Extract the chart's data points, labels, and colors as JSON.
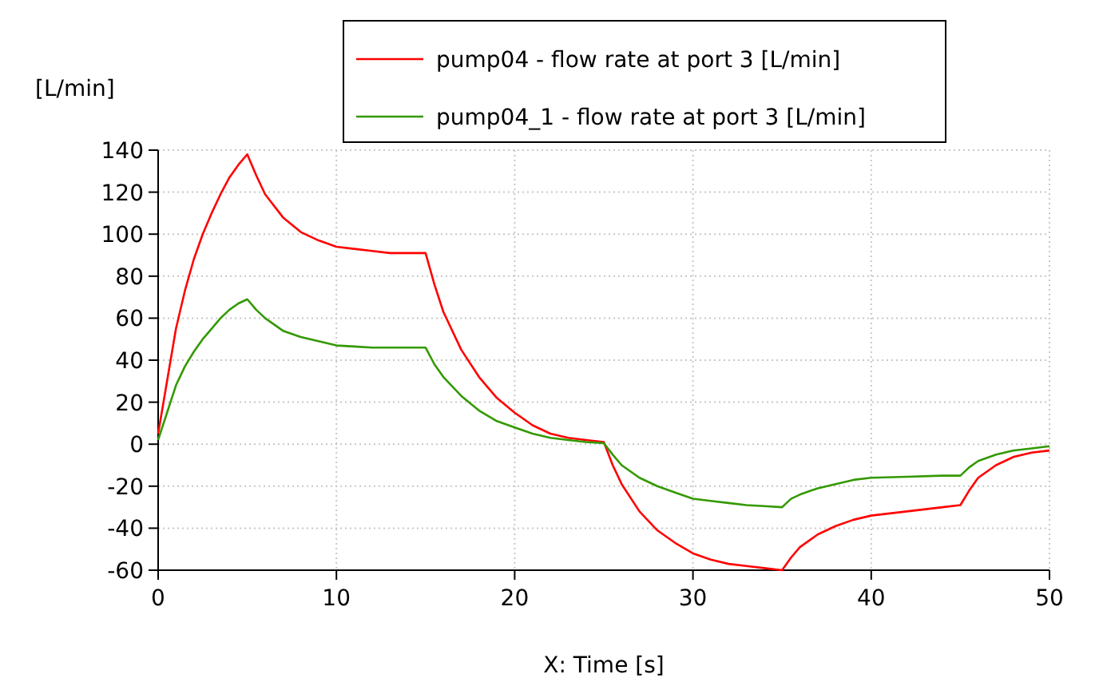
{
  "chart_data": {
    "type": "line",
    "ylabel": "[L/min]",
    "xlabel": "X: Time [s]",
    "xlim": [
      0,
      50
    ],
    "xticks": [
      0,
      10,
      20,
      30,
      40,
      50
    ],
    "ylim": [
      -60,
      140
    ],
    "yticks": [
      -60,
      -40,
      -20,
      0,
      20,
      40,
      60,
      80,
      100,
      120,
      140
    ],
    "grid": true,
    "legend": "top",
    "marker": "none",
    "line_style": "solid",
    "series": [
      {
        "name": "pump04 - flow rate at port 3 [L/min]",
        "color": "#ff0000",
        "x": [
          0,
          0.5,
          1,
          1.5,
          2,
          2.5,
          3,
          3.5,
          4,
          4.5,
          5,
          5.5,
          6,
          7,
          8,
          9,
          10,
          11,
          12,
          13,
          14,
          15,
          15.5,
          16,
          17,
          18,
          19,
          20,
          21,
          22,
          23,
          24,
          25,
          25.5,
          26,
          27,
          28,
          29,
          30,
          31,
          32,
          33,
          34,
          35,
          35.5,
          36,
          37,
          38,
          39,
          40,
          42,
          44,
          45,
          45.5,
          46,
          47,
          48,
          49,
          50
        ],
        "values": [
          5,
          30,
          55,
          73,
          88,
          100,
          110,
          119,
          127,
          133,
          138,
          128,
          119,
          108,
          101,
          97,
          94,
          93,
          92,
          91,
          91,
          91,
          76,
          63,
          45,
          32,
          22,
          15,
          9,
          5,
          3,
          2,
          1,
          -10,
          -19,
          -32,
          -41,
          -47,
          -52,
          -55,
          -57,
          -58,
          -59,
          -60,
          -54,
          -49,
          -43,
          -39,
          -36,
          -34,
          -32,
          -30,
          -29,
          -22,
          -16,
          -10,
          -6,
          -4,
          -3
        ]
      },
      {
        "name": "pump04_1 - flow rate at port 3 [L/min]",
        "color": "#339900",
        "x": [
          0,
          0.5,
          1,
          1.5,
          2,
          2.5,
          3,
          3.5,
          4,
          4.5,
          5,
          5.5,
          6,
          7,
          8,
          9,
          10,
          11,
          12,
          13,
          14,
          15,
          15.5,
          16,
          17,
          18,
          19,
          20,
          21,
          22,
          23,
          24,
          25,
          25.5,
          26,
          27,
          28,
          29,
          30,
          31,
          32,
          33,
          34,
          35,
          35.5,
          36,
          37,
          38,
          39,
          40,
          42,
          44,
          45,
          45.5,
          46,
          47,
          48,
          49,
          50
        ],
        "values": [
          2,
          15,
          28,
          37,
          44,
          50,
          55,
          60,
          64,
          67,
          69,
          64,
          60,
          54,
          51,
          49,
          47,
          46.5,
          46,
          46,
          46,
          46,
          38,
          32,
          23,
          16,
          11,
          8,
          5,
          3,
          2,
          1,
          0.5,
          -5,
          -10,
          -16,
          -20,
          -23,
          -26,
          -27,
          -28,
          -29,
          -29.5,
          -30,
          -26,
          -24,
          -21,
          -19,
          -17,
          -16,
          -15.5,
          -15,
          -15,
          -11,
          -8,
          -5,
          -3,
          -2,
          -1
        ]
      }
    ]
  }
}
